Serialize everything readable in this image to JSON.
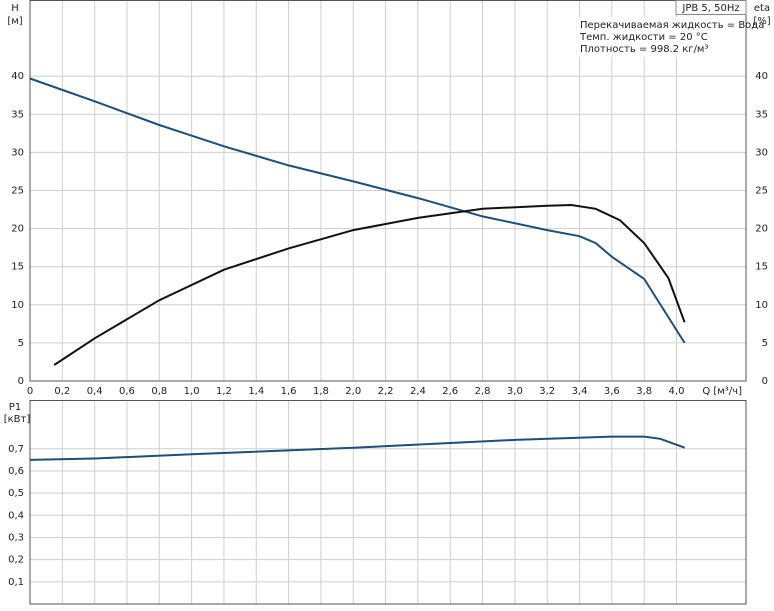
{
  "chart_data": [
    {
      "type": "line",
      "info": [
        "JPB 5, 50Hz",
        "Перекачиваемая жидкость = Вода",
        "Темп. жидкости = 20 °C",
        "Плотность = 998.2 кг/м³"
      ],
      "y_unit": "[м]",
      "y2_unit": "[%]",
      "xlabel": "Q [м³/ч]",
      "xlim": [
        0,
        4.43
      ],
      "xticks": [
        0,
        {
          "value": 0.2,
          "label": "0,2"
        },
        {
          "value": 0.4,
          "label": "0,4"
        },
        {
          "value": 0.6,
          "label": "0,6"
        },
        {
          "value": 0.8,
          "label": "0,8"
        },
        {
          "value": 1.0,
          "label": "1,0"
        },
        {
          "value": 1.2,
          "label": "1,2"
        },
        {
          "value": 1.4,
          "label": "1,4"
        },
        {
          "value": 1.6,
          "label": "1,6"
        },
        {
          "value": 1.8,
          "label": "1,8"
        },
        {
          "value": 2.0,
          "label": "2,0"
        },
        {
          "value": 2.2,
          "label": "2,2"
        },
        {
          "value": 2.4,
          "label": "2,4"
        },
        {
          "value": 2.6,
          "label": "2,6"
        },
        {
          "value": 2.8,
          "label": "2,8"
        },
        {
          "value": 3.0,
          "label": "3,0"
        },
        {
          "value": 3.2,
          "label": "3,2"
        },
        {
          "value": 3.4,
          "label": "3,4"
        },
        {
          "value": 3.6,
          "label": "3,6"
        },
        {
          "value": 3.8,
          "label": "3,8"
        },
        {
          "value": 4.0,
          "label": "4,0"
        }
      ],
      "ylim": [
        0,
        50
      ],
      "yticks": [
        0,
        5,
        10,
        15,
        20,
        25,
        30,
        35,
        40
      ],
      "y2lim": [
        0,
        50
      ],
      "y2ticks": [
        0,
        5,
        10,
        15,
        20,
        25,
        30,
        35,
        40
      ],
      "grid": true,
      "series": [
        {
          "name": "H",
          "color": "#1f4e79",
          "x": [
            0,
            0.4,
            0.8,
            1.2,
            1.6,
            2.0,
            2.4,
            2.8,
            3.2,
            3.4,
            3.5,
            3.6,
            3.8,
            4.05
          ],
          "values": [
            39.7,
            36.7,
            33.6,
            30.8,
            28.3,
            26.2,
            24.0,
            21.6,
            19.8,
            19.0,
            18.1,
            16.3,
            13.4,
            5.0
          ]
        },
        {
          "name": "eta",
          "color": "#111111",
          "axis": "y2",
          "x": [
            0.15,
            0.4,
            0.8,
            1.2,
            1.6,
            2.0,
            2.4,
            2.8,
            3.2,
            3.35,
            3.5,
            3.65,
            3.8,
            3.95,
            4.05
          ],
          "values": [
            2.1,
            5.6,
            10.6,
            14.6,
            17.4,
            19.8,
            21.4,
            22.6,
            23.0,
            23.1,
            22.6,
            21.1,
            18.1,
            13.5,
            7.7
          ]
        }
      ]
    },
    {
      "type": "line",
      "y_unit": "[кВт]",
      "xlim": [
        0,
        4.43
      ],
      "ylim": [
        0,
        0.92
      ],
      "yticks": [
        {
          "value": 0.1,
          "label": "0,1"
        },
        {
          "value": 0.2,
          "label": "0,2"
        },
        {
          "value": 0.3,
          "label": "0,3"
        },
        {
          "value": 0.4,
          "label": "0,4"
        },
        {
          "value": 0.5,
          "label": "0,5"
        },
        {
          "value": 0.6,
          "label": "0,6"
        },
        {
          "value": 0.7,
          "label": "0,7"
        }
      ],
      "grid": true,
      "series": [
        {
          "name": "P1",
          "color": "#1f4e79",
          "x": [
            0,
            0.4,
            1.0,
            2.0,
            3.0,
            3.6,
            3.8,
            3.9,
            4.05
          ],
          "values": [
            0.65,
            0.656,
            0.675,
            0.705,
            0.74,
            0.755,
            0.755,
            0.745,
            0.705
          ]
        }
      ]
    }
  ]
}
